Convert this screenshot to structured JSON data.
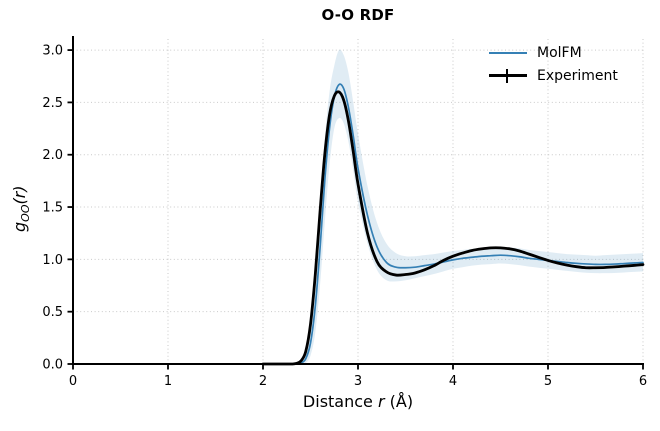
{
  "title": "O-O RDF",
  "labels": {
    "xlabel_prefix": "Distance ",
    "xlabel_var": "r",
    "xlabel_suffix": " (Å)",
    "ylabel_base": "g",
    "ylabel_sub": "OO",
    "ylabel_args": "(r)"
  },
  "legend": [
    {
      "label": "MolFM",
      "color": "#3580b5",
      "marker": "line"
    },
    {
      "label": "Experiment",
      "color": "#000000",
      "marker": "errorbar"
    }
  ],
  "colors": {
    "molfm_line": "#3580b5",
    "uncertainty_band": "#3f87b9",
    "band_opacity": 0.16,
    "experiment_line": "#000000",
    "grid": "#c9c9c9",
    "spine": "#000000",
    "background": "#ffffff"
  },
  "chart_data": {
    "type": "line",
    "title": "O-O RDF",
    "xlabel": "Distance r (Å)",
    "ylabel": "g_OO(r)",
    "xlim": [
      0,
      6
    ],
    "ylim": [
      0,
      3.125
    ],
    "xticks": [
      0,
      1,
      2,
      3,
      4,
      5,
      6
    ],
    "xtick_labels": [
      "0",
      "1",
      "2",
      "3",
      "4",
      "5",
      "6"
    ],
    "yticks": [
      0.0,
      0.5,
      1.0,
      1.5,
      2.0,
      2.5,
      3.0
    ],
    "ytick_labels": [
      "0.0",
      "0.5",
      "1.0",
      "1.5",
      "2.0",
      "2.5",
      "3.0"
    ],
    "grid": "dotted",
    "legend_position": "upper right",
    "x": [
      2.0,
      2.2,
      2.3,
      2.35,
      2.4,
      2.45,
      2.5,
      2.55,
      2.6,
      2.65,
      2.7,
      2.75,
      2.8,
      2.85,
      2.9,
      2.95,
      3.0,
      3.1,
      3.2,
      3.3,
      3.4,
      3.5,
      3.6,
      3.7,
      3.8,
      3.9,
      4.0,
      4.1,
      4.2,
      4.3,
      4.4,
      4.5,
      4.6,
      4.7,
      4.8,
      4.9,
      5.0,
      5.1,
      5.2,
      5.3,
      5.4,
      5.5,
      5.6,
      5.7,
      5.8,
      5.9,
      6.0
    ],
    "series": [
      {
        "name": "MolFM",
        "color": "#3580b5",
        "width": 1.7,
        "y": [
          0,
          0,
          0,
          0,
          0.01,
          0.05,
          0.2,
          0.55,
          1.1,
          1.75,
          2.25,
          2.55,
          2.67,
          2.63,
          2.45,
          2.18,
          1.87,
          1.42,
          1.12,
          0.97,
          0.925,
          0.92,
          0.925,
          0.94,
          0.955,
          0.975,
          0.995,
          1.01,
          1.02,
          1.03,
          1.035,
          1.04,
          1.035,
          1.025,
          1.01,
          1.0,
          0.99,
          0.98,
          0.97,
          0.962,
          0.956,
          0.952,
          0.952,
          0.955,
          0.96,
          0.965,
          0.97
        ],
        "band_upper": [
          0,
          0,
          0,
          0.01,
          0.04,
          0.13,
          0.4,
          0.9,
          1.5,
          2.15,
          2.6,
          2.85,
          3.0,
          2.95,
          2.78,
          2.5,
          2.2,
          1.7,
          1.35,
          1.15,
          1.06,
          1.03,
          1.03,
          1.04,
          1.05,
          1.065,
          1.08,
          1.09,
          1.1,
          1.11,
          1.115,
          1.12,
          1.115,
          1.105,
          1.09,
          1.08,
          1.07,
          1.06,
          1.05,
          1.045,
          1.04,
          1.035,
          1.04,
          1.045,
          1.05,
          1.055,
          1.06
        ],
        "band_lower": [
          0,
          0,
          0,
          0,
          0,
          0.01,
          0.08,
          0.3,
          0.75,
          1.35,
          1.9,
          2.25,
          2.35,
          2.3,
          2.12,
          1.85,
          1.55,
          1.15,
          0.9,
          0.8,
          0.79,
          0.8,
          0.82,
          0.84,
          0.86,
          0.885,
          0.91,
          0.925,
          0.94,
          0.95,
          0.955,
          0.96,
          0.955,
          0.945,
          0.93,
          0.92,
          0.91,
          0.9,
          0.89,
          0.88,
          0.872,
          0.868,
          0.868,
          0.87,
          0.875,
          0.88,
          0.885
        ]
      },
      {
        "name": "Experiment",
        "color": "#000000",
        "width": 2.8,
        "y": [
          0,
          0,
          0,
          0.005,
          0.03,
          0.12,
          0.38,
          0.85,
          1.45,
          2.0,
          2.38,
          2.56,
          2.6,
          2.52,
          2.32,
          2.03,
          1.72,
          1.25,
          0.98,
          0.88,
          0.85,
          0.855,
          0.87,
          0.9,
          0.94,
          0.99,
          1.03,
          1.06,
          1.085,
          1.1,
          1.11,
          1.11,
          1.1,
          1.08,
          1.05,
          1.02,
          0.99,
          0.965,
          0.945,
          0.93,
          0.92,
          0.92,
          0.922,
          0.928,
          0.935,
          0.942,
          0.95
        ]
      }
    ]
  }
}
